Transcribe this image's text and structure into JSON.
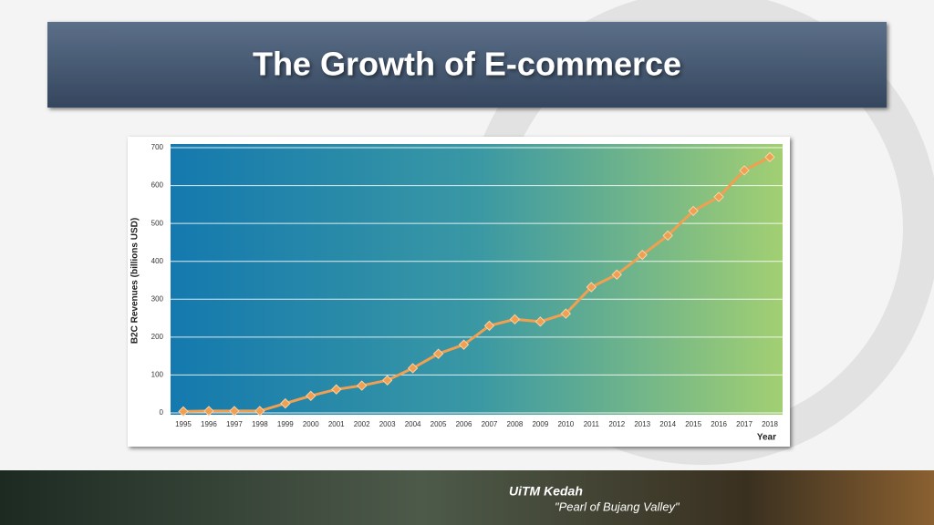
{
  "chart_data": {
    "type": "line",
    "title": "The Growth of E-commerce",
    "y_label": "B2C Revenues (billions USD)",
    "x_label": "Year",
    "categories": [
      "1995",
      "1996",
      "1997",
      "1998",
      "1999",
      "2000",
      "2001",
      "2002",
      "2003",
      "2004",
      "2005",
      "2006",
      "2007",
      "2008",
      "2009",
      "2010",
      "2011",
      "2012",
      "2013",
      "2014",
      "2015",
      "2016",
      "2017",
      "2018"
    ],
    "series": [
      {
        "name": "B2C Revenues",
        "color": "#f0a050",
        "values": [
          4,
          5,
          5,
          5,
          25,
          45,
          62,
          72,
          86,
          118,
          156,
          180,
          230,
          247,
          241,
          262,
          332,
          365,
          417,
          468,
          533,
          570,
          640,
          675
        ]
      }
    ],
    "ylim": [
      0,
      700
    ],
    "yticks": [
      0,
      100,
      200,
      300,
      400,
      500,
      600,
      700
    ],
    "grid": true
  },
  "footer": {
    "name": "UiTM Kedah",
    "tagline": "\"Pearl of Bujang Valley\""
  }
}
